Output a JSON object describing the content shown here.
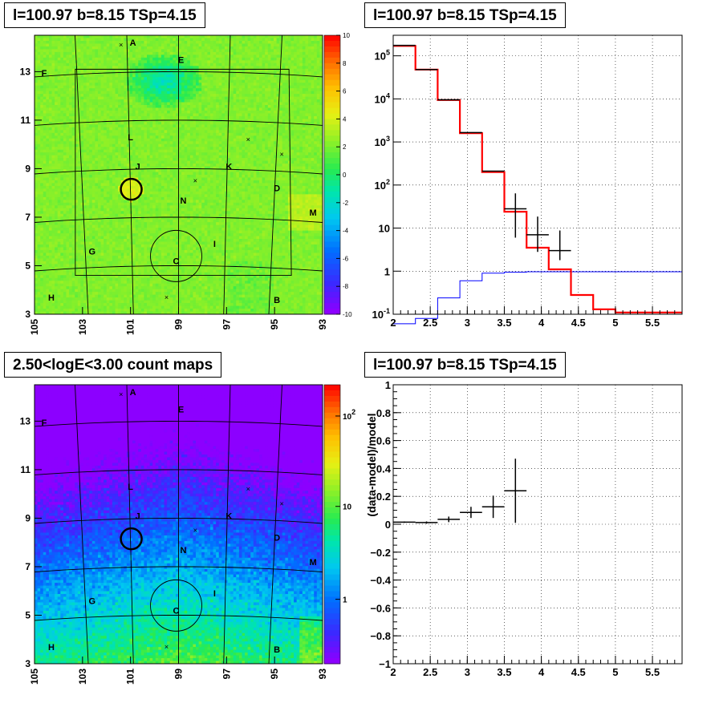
{
  "colors": {
    "data": "#000000",
    "model": "#ff0000",
    "background": "#0000ff"
  },
  "panels": {
    "tl": {
      "title": "l=100.97 b=8.15 TSp=4.15"
    },
    "tr": {
      "title": "l=100.97 b=8.15 TSp=4.15"
    },
    "bl": {
      "title": "2.50<logE<3.00 count maps"
    },
    "br": {
      "title": "l=100.97 b=8.15 TSp=4.15"
    }
  },
  "chart_data": [
    {
      "type": "heatmap",
      "panel": "top-left",
      "title": "l=100.97 b=8.15 TSp=4.15",
      "x_ticks": [
        "105",
        "103",
        "101",
        "99",
        "97",
        "95",
        "93"
      ],
      "y_ticks": [
        "3",
        "5",
        "7",
        "9",
        "11",
        "13"
      ],
      "xlim": [
        105,
        93
      ],
      "ylim": [
        3,
        14.5
      ],
      "colorbar": {
        "min": -10,
        "max": 10,
        "ticks": [
          "10",
          "8",
          "6",
          "4",
          "2",
          "0",
          "-2",
          "-4",
          "-6",
          "-8",
          "-10"
        ],
        "scale": "linear"
      },
      "markers": [
        {
          "label": "A",
          "l": 100.9,
          "b": 14.2
        },
        {
          "label": "B",
          "l": 94.9,
          "b": 3.6
        },
        {
          "label": "C",
          "l": 99.1,
          "b": 5.2
        },
        {
          "label": "D",
          "l": 94.9,
          "b": 8.2
        },
        {
          "label": "E",
          "l": 98.9,
          "b": 13.5
        },
        {
          "label": "F",
          "l": 104.6,
          "b": 12.95
        },
        {
          "label": "G",
          "l": 102.6,
          "b": 5.6
        },
        {
          "label": "H",
          "l": 104.3,
          "b": 3.7
        },
        {
          "label": "I",
          "l": 97.5,
          "b": 5.9
        },
        {
          "label": "J",
          "l": 100.7,
          "b": 9.1
        },
        {
          "label": "K",
          "l": 96.9,
          "b": 9.1
        },
        {
          "label": "L",
          "l": 101.0,
          "b": 10.3
        },
        {
          "label": "M",
          "l": 93.4,
          "b": 7.2
        },
        {
          "label": "N",
          "l": 98.8,
          "b": 7.7
        }
      ],
      "source_circle": {
        "l": 100.97,
        "b": 8.15
      },
      "large_circle": {
        "l": 99.1,
        "b": 5.4
      }
    },
    {
      "type": "line",
      "panel": "top-right",
      "title": "l=100.97 b=8.15 TSp=4.15",
      "x_ticks": [
        "2",
        "2.5",
        "3",
        "3.5",
        "4",
        "4.5",
        "5",
        "5.5"
      ],
      "xlim": [
        2,
        5.9
      ],
      "yscale": "log",
      "ylim": [
        0.1,
        300000
      ],
      "y_ticks": [
        {
          "base": "10",
          "exp": "-1"
        },
        {
          "base": "1",
          "exp": ""
        },
        {
          "base": "10",
          "exp": ""
        },
        {
          "base": "10",
          "exp": "2"
        },
        {
          "base": "10",
          "exp": "3"
        },
        {
          "base": "10",
          "exp": "4"
        },
        {
          "base": "10",
          "exp": "5"
        }
      ],
      "grid": true,
      "bin_edges": [
        2.0,
        2.3,
        2.6,
        2.9,
        3.2,
        3.5,
        3.8,
        4.1,
        4.4,
        4.7,
        5.0,
        5.3,
        5.6,
        5.9
      ],
      "series": [
        {
          "role": "model",
          "values": [
            170000,
            48000,
            9400,
            1600,
            200,
            24,
            3.5,
            1.1,
            0.28,
            0.13,
            0.11,
            0.11,
            0.11
          ]
        },
        {
          "role": "background",
          "values": [
            0.06,
            0.08,
            0.24,
            0.6,
            0.9,
            0.95,
            0.97,
            0.97,
            0.97,
            0.97,
            0.97,
            0.97,
            0.97
          ]
        },
        {
          "role": "data",
          "points": [
            {
              "x": 2.15,
              "y": 175000,
              "xerr": 0.15
            },
            {
              "x": 2.45,
              "y": 48000,
              "xerr": 0.15
            },
            {
              "x": 2.75,
              "y": 9500,
              "xerr": 0.15
            },
            {
              "x": 3.05,
              "y": 1650,
              "xerr": 0.15
            },
            {
              "x": 3.35,
              "y": 210,
              "xerr": 0.15
            },
            {
              "x": 3.65,
              "y": 28,
              "xerr": 0.15,
              "yerr": [
                22,
                36
              ]
            },
            {
              "x": 3.95,
              "y": 7,
              "xerr": 0.15,
              "yerr": [
                4.2,
                11.5
              ]
            },
            {
              "x": 4.25,
              "y": 3,
              "xerr": 0.15,
              "yerr": [
                1.2,
                5.8
              ]
            }
          ]
        }
      ]
    },
    {
      "type": "heatmap",
      "panel": "bottom-left",
      "title": "2.50<logE<3.00 count maps",
      "x_ticks": [
        "105",
        "103",
        "101",
        "99",
        "97",
        "95",
        "93"
      ],
      "y_ticks": [
        "3",
        "5",
        "7",
        "9",
        "11",
        "13"
      ],
      "xlim": [
        105,
        93
      ],
      "ylim": [
        3,
        14.5
      ],
      "colorbar": {
        "scale": "log",
        "ticks": [
          {
            "base": "10",
            "exp": "2"
          },
          {
            "base": "10",
            "exp": ""
          },
          {
            "base": "1",
            "exp": ""
          }
        ]
      },
      "markers": "same as top-left"
    },
    {
      "type": "scatter",
      "panel": "bottom-right",
      "title": "l=100.97 b=8.15 TSp=4.15",
      "ylabel": "(data-model)/model",
      "x_ticks": [
        "2",
        "2.5",
        "3",
        "3.5",
        "4",
        "4.5",
        "5",
        "5.5"
      ],
      "y_ticks": [
        "1",
        "0.8",
        "0.6",
        "0.4",
        "0.2",
        "0",
        "−0.2",
        "−0.4",
        "−0.6",
        "−0.8",
        "−1"
      ],
      "xlim": [
        2,
        5.9
      ],
      "ylim": [
        -1,
        1
      ],
      "grid": true,
      "points": [
        {
          "x": 2.15,
          "y": 0.015,
          "xerr": 0.15,
          "yerr": 0.005
        },
        {
          "x": 2.45,
          "y": 0.012,
          "xerr": 0.15,
          "yerr": 0.008
        },
        {
          "x": 2.75,
          "y": 0.035,
          "xerr": 0.15,
          "yerr": 0.02
        },
        {
          "x": 3.05,
          "y": 0.085,
          "xerr": 0.15,
          "yerr": 0.04
        },
        {
          "x": 3.35,
          "y": 0.125,
          "xerr": 0.15,
          "yerr": 0.08
        },
        {
          "x": 3.65,
          "y": 0.24,
          "xerr": 0.15,
          "yerr": 0.23
        }
      ]
    }
  ]
}
